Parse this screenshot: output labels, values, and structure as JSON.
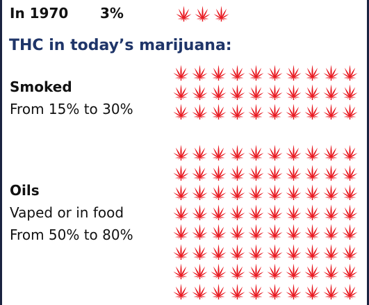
{
  "colors": {
    "leaf": "#e8141c",
    "heading": "#1f3569",
    "text": "#111111",
    "frame": "#1a2340"
  },
  "icon": "cannabis-leaf-icon",
  "row_1970": {
    "label": "In 1970",
    "value": "3%",
    "leaf_count": 3
  },
  "heading": "THC in today’s marijuana:",
  "smoked": {
    "title": "Smoked",
    "range": "From 15% to 30%",
    "leaf_count": 30
  },
  "oils": {
    "title": "Oils",
    "subtitle": "Vaped or in food",
    "range": "From 50% to 80%",
    "leaf_count": 80
  }
}
